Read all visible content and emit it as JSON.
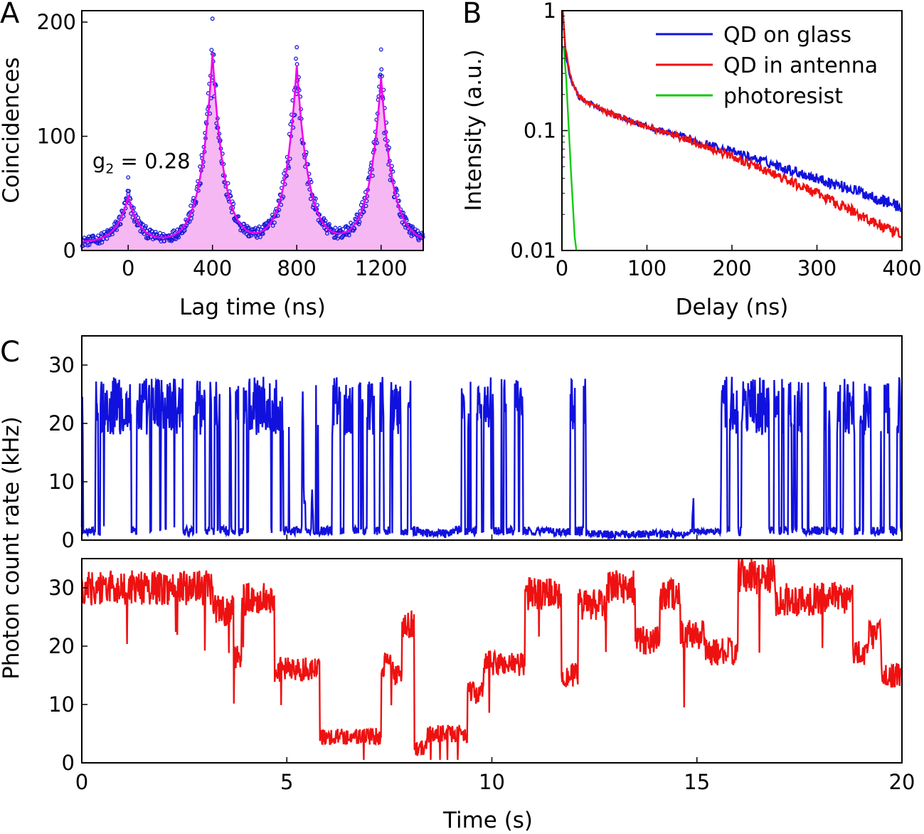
{
  "panel_labels": {
    "a": "A",
    "b": "B",
    "c": "C"
  },
  "chart_data": [
    {
      "panel": "A",
      "type": "scatter",
      "xlabel": "Lag time (ns)",
      "ylabel": "Coincidences",
      "xlim": [
        -220,
        1400
      ],
      "ylim": [
        0,
        210
      ],
      "xticks": [
        0,
        400,
        800,
        1200
      ],
      "yticks": [
        0,
        100,
        200
      ],
      "annotation": {
        "main": "g",
        "sub": "2",
        "rest": " = 0.28",
        "x": -170,
        "y": 72
      },
      "colors": {
        "points": "#1a1adb",
        "fit_line": "#ee00ee",
        "fill": "#f6b8f3"
      },
      "model": {
        "peak_centers": [
          0,
          400,
          800,
          1200
        ],
        "peak_heights": [
          40,
          165,
          155,
          145
        ],
        "background": 7,
        "decay_ns": 55
      },
      "points": [
        {
          "x": 0,
          "y": 64
        },
        {
          "x": 400,
          "y": 203
        },
        {
          "x": 800,
          "y": 178
        },
        {
          "x": 1200,
          "y": 176
        }
      ]
    },
    {
      "panel": "B",
      "type": "line",
      "xlabel": "Delay (ns)",
      "ylabel": "Intensity (a.u.)",
      "xlim": [
        0,
        400
      ],
      "ylim": [
        0.01,
        1
      ],
      "yscale": "log",
      "xticks": [
        0,
        100,
        200,
        300,
        400
      ],
      "yticks": [
        {
          "v": 0.01,
          "label": "0.01"
        },
        {
          "v": 0.1,
          "label": "0.1"
        },
        {
          "v": 1,
          "label": "1"
        }
      ],
      "legend_position": "top-right",
      "series": [
        {
          "name": "QD on glass",
          "color": "#1111dd",
          "points": [
            [
              1,
              1
            ],
            [
              4,
              0.45
            ],
            [
              10,
              0.27
            ],
            [
              20,
              0.19
            ],
            [
              50,
              0.145
            ],
            [
              100,
              0.108
            ],
            [
              150,
              0.085
            ],
            [
              200,
              0.067
            ],
            [
              250,
              0.052
            ],
            [
              300,
              0.04
            ],
            [
              350,
              0.031
            ],
            [
              400,
              0.023
            ]
          ]
        },
        {
          "name": "QD in antenna",
          "color": "#ee1111",
          "points": [
            [
              1,
              1
            ],
            [
              4,
              0.5
            ],
            [
              10,
              0.28
            ],
            [
              20,
              0.19
            ],
            [
              50,
              0.145
            ],
            [
              100,
              0.108
            ],
            [
              150,
              0.083
            ],
            [
              200,
              0.061
            ],
            [
              250,
              0.043
            ],
            [
              300,
              0.03
            ],
            [
              350,
              0.02
            ],
            [
              400,
              0.013
            ]
          ]
        },
        {
          "name": "photoresist",
          "color": "#11cc11",
          "points": [
            [
              2,
              0.5
            ],
            [
              5,
              0.27
            ],
            [
              10,
              0.055
            ],
            [
              15,
              0.013
            ],
            [
              17,
              0.01
            ]
          ]
        }
      ]
    },
    {
      "panel": "C",
      "type": "line",
      "xlabel": "Time (s)",
      "ylabel": "Photon count rate (kHz)",
      "xlim": [
        0,
        20
      ],
      "ylim": [
        0,
        35
      ],
      "xticks": [
        0,
        5,
        10,
        15,
        20
      ],
      "yticks": [
        0,
        10,
        20,
        30
      ],
      "series": [
        {
          "name": "",
          "color": "#1111dd",
          "pattern": "blinking",
          "levels": [
            [
              0,
              0.6,
              18
            ],
            [
              0.6,
              1.5,
              24
            ],
            [
              1.5,
              3.0,
              14
            ],
            [
              3.0,
              4.5,
              10
            ],
            [
              4.5,
              5.4,
              9
            ],
            [
              5.4,
              5.7,
              6
            ],
            [
              5.7,
              8.3,
              14
            ],
            [
              8.3,
              9.0,
              1.2
            ],
            [
              9.0,
              11.0,
              12
            ],
            [
              11.0,
              11.8,
              1.5
            ],
            [
              11.8,
              12.3,
              12
            ],
            [
              12.3,
              14.8,
              1
            ],
            [
              14.8,
              15.6,
              4
            ],
            [
              15.6,
              20.0,
              14
            ]
          ]
        },
        {
          "name": "",
          "color": "#ee1111",
          "pattern": "steps",
          "levels": [
            [
              0,
              3.2,
              30
            ],
            [
              3.2,
              3.7,
              26
            ],
            [
              3.7,
              3.9,
              18
            ],
            [
              3.9,
              4.7,
              28
            ],
            [
              4.7,
              5.8,
              16
            ],
            [
              5.8,
              7.3,
              4.5
            ],
            [
              7.3,
              7.6,
              17
            ],
            [
              7.6,
              7.8,
              15
            ],
            [
              7.8,
              8.1,
              24
            ],
            [
              8.1,
              8.4,
              2.5
            ],
            [
              8.4,
              9.4,
              5
            ],
            [
              9.4,
              9.8,
              12
            ],
            [
              9.8,
              10.8,
              17
            ],
            [
              10.8,
              11.7,
              29
            ],
            [
              11.7,
              12.1,
              15
            ],
            [
              12.1,
              12.8,
              27
            ],
            [
              12.8,
              13.5,
              30
            ],
            [
              13.5,
              14.1,
              21
            ],
            [
              14.1,
              14.6,
              29
            ],
            [
              14.6,
              15.2,
              22
            ],
            [
              15.2,
              16.0,
              19
            ],
            [
              16.0,
              16.9,
              32
            ],
            [
              16.9,
              18.8,
              28
            ],
            [
              18.8,
              19.2,
              19
            ],
            [
              19.2,
              19.5,
              22
            ],
            [
              19.5,
              20,
              15
            ]
          ]
        }
      ]
    }
  ]
}
